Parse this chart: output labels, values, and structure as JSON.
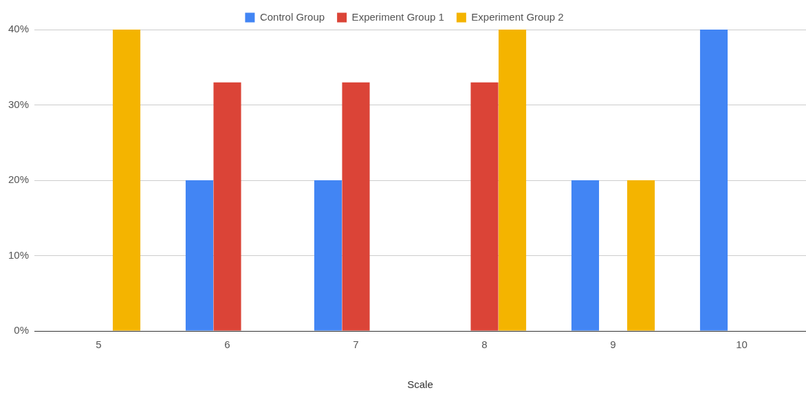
{
  "chart_data": {
    "type": "bar",
    "xlabel": "Scale",
    "categories": [
      "5",
      "6",
      "7",
      "8",
      "9",
      "10"
    ],
    "series": [
      {
        "name": "Control Group",
        "color": "#4285f4",
        "values": [
          0,
          20,
          20,
          0,
          20,
          40
        ]
      },
      {
        "name": "Experiment Group 1",
        "color": "#db4437",
        "values": [
          0,
          33,
          33,
          33,
          0,
          0
        ]
      },
      {
        "name": "Experiment Group 2",
        "color": "#f4b400",
        "values": [
          40,
          0,
          0,
          40,
          20,
          0
        ]
      }
    ],
    "ylim": [
      0,
      40
    ],
    "yticks": [
      {
        "value": 0,
        "label": "0%"
      },
      {
        "value": 10,
        "label": "10%"
      },
      {
        "value": 20,
        "label": "20%"
      },
      {
        "value": 30,
        "label": "30%"
      },
      {
        "value": 40,
        "label": "40%"
      }
    ],
    "grid": "y",
    "legend": "top"
  }
}
